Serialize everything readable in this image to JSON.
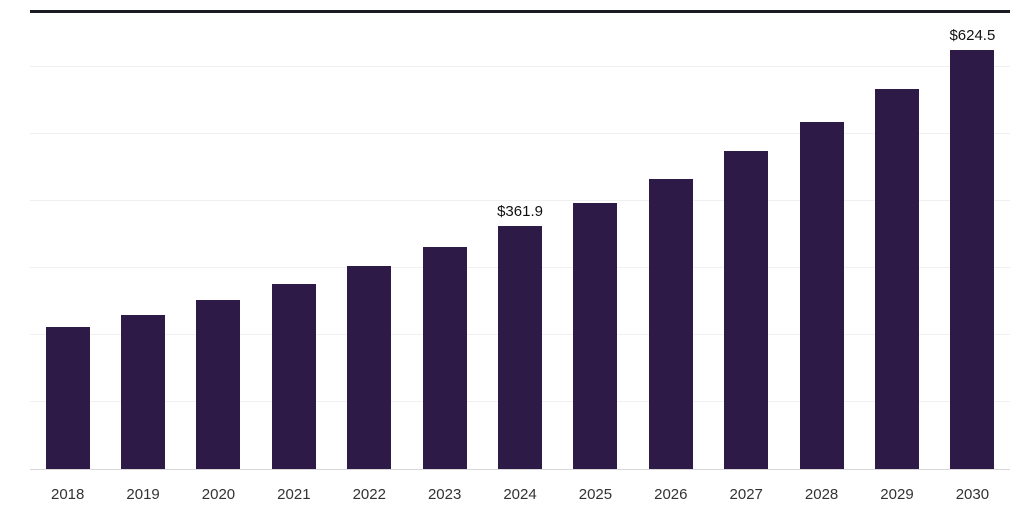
{
  "chart_data": {
    "type": "bar",
    "title": "",
    "xlabel": "",
    "ylabel": "",
    "categories": [
      "2018",
      "2019",
      "2020",
      "2021",
      "2022",
      "2023",
      "2024",
      "2025",
      "2026",
      "2027",
      "2028",
      "2029",
      "2030"
    ],
    "values": [
      211.2,
      230.1,
      252.0,
      276.4,
      302.9,
      330.5,
      361.9,
      396.3,
      433.0,
      474.1,
      518.0,
      567.1,
      624.5
    ],
    "annotated_points": [
      {
        "category": "2024",
        "label": "$361.9"
      },
      {
        "category": "2030",
        "label": "$624.5"
      }
    ],
    "ylim": [
      0,
      680
    ],
    "grid": "horizontal",
    "grid_interval": 100,
    "legend": "none",
    "y_axis_labels_visible": false
  },
  "colors": {
    "bar": "#2E1A47",
    "gridline": "#F0F0F0",
    "axis_line": "#D8D8D8",
    "top_rule": "#1B1B24",
    "tick_text": "#333333",
    "annotation_text": "#111111",
    "background": "#FFFFFF"
  }
}
